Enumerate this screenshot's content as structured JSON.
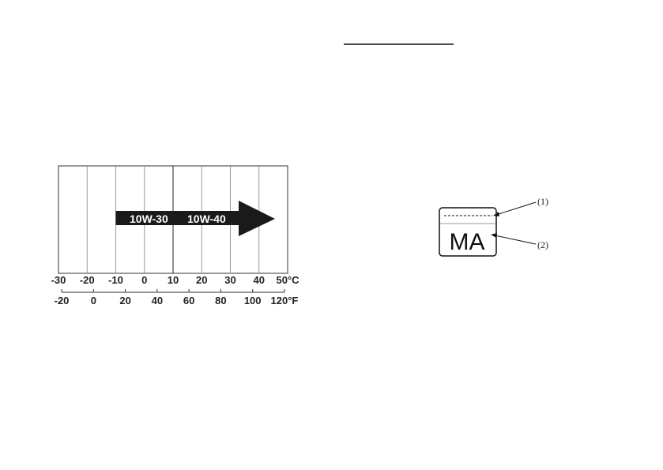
{
  "chart_data": {
    "type": "diagram",
    "celsius_ticks": [
      "-30",
      "-20",
      "-10",
      "0",
      "10",
      "20",
      "30",
      "40",
      "50"
    ],
    "celsius_unit": "°C",
    "fahrenheit_ticks": [
      "-20",
      "0",
      "20",
      "40",
      "60",
      "80",
      "100",
      "120"
    ],
    "fahrenheit_unit": "°F",
    "viscosity_range": {
      "labels": [
        "10W-30",
        "10W-40"
      ],
      "from_celsius": -10,
      "to_celsius": 50
    },
    "xlim_celsius": [
      -30,
      50
    ]
  },
  "label_figure": {
    "mark_text": "MA",
    "callouts": [
      "(1)",
      "(2)"
    ]
  }
}
